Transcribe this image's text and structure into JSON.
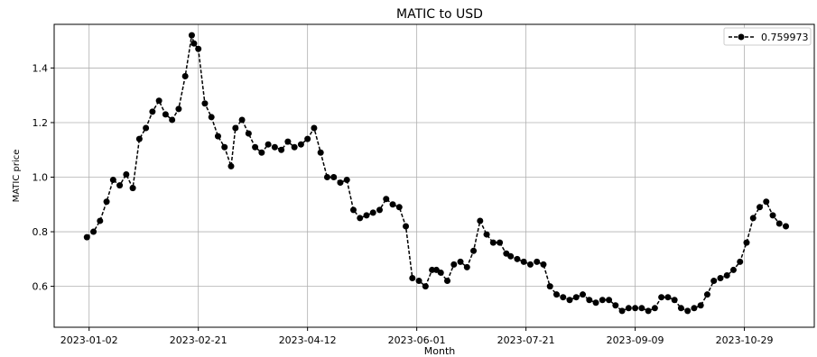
{
  "chart_data": {
    "type": "line",
    "title": "MATIC to USD",
    "xlabel": "Month",
    "ylabel": "MATIC price",
    "x_ticks": [
      "2023-01-02",
      "2023-02-21",
      "2023-04-12",
      "2023-06-01",
      "2023-07-21",
      "2023-09-09",
      "2023-10-29"
    ],
    "y_ticks": [
      "0.6",
      "0.8",
      "1.0",
      "1.2",
      "1.4"
    ],
    "xlim": [
      "2022-12-17",
      "2023-11-30"
    ],
    "ylim": [
      0.45,
      1.56
    ],
    "grid": true,
    "legend_position": "top-right",
    "series": [
      {
        "name": "0.759973",
        "color": "#000000",
        "line_style": "dashed",
        "marker": "circle",
        "x": [
          "2023-01-01",
          "2023-01-04",
          "2023-01-07",
          "2023-01-10",
          "2023-01-13",
          "2023-01-16",
          "2023-01-19",
          "2023-01-22",
          "2023-01-25",
          "2023-01-28",
          "2023-01-31",
          "2023-02-03",
          "2023-02-06",
          "2023-02-09",
          "2023-02-12",
          "2023-02-15",
          "2023-02-18",
          "2023-02-19",
          "2023-02-21",
          "2023-02-24",
          "2023-02-27",
          "2023-03-02",
          "2023-03-05",
          "2023-03-08",
          "2023-03-10",
          "2023-03-13",
          "2023-03-16",
          "2023-03-19",
          "2023-03-22",
          "2023-03-25",
          "2023-03-28",
          "2023-03-31",
          "2023-04-03",
          "2023-04-06",
          "2023-04-09",
          "2023-04-12",
          "2023-04-15",
          "2023-04-18",
          "2023-04-21",
          "2023-04-24",
          "2023-04-27",
          "2023-04-30",
          "2023-05-03",
          "2023-05-06",
          "2023-05-09",
          "2023-05-12",
          "2023-05-15",
          "2023-05-18",
          "2023-05-21",
          "2023-05-24",
          "2023-05-27",
          "2023-05-30",
          "2023-06-02",
          "2023-06-05",
          "2023-06-08",
          "2023-06-10",
          "2023-06-12",
          "2023-06-15",
          "2023-06-18",
          "2023-06-21",
          "2023-06-24",
          "2023-06-27",
          "2023-06-30",
          "2023-07-03",
          "2023-07-06",
          "2023-07-09",
          "2023-07-12",
          "2023-07-14",
          "2023-07-17",
          "2023-07-20",
          "2023-07-23",
          "2023-07-26",
          "2023-07-29",
          "2023-08-01",
          "2023-08-04",
          "2023-08-07",
          "2023-08-10",
          "2023-08-13",
          "2023-08-16",
          "2023-08-19",
          "2023-08-22",
          "2023-08-25",
          "2023-08-28",
          "2023-08-31",
          "2023-09-03",
          "2023-09-06",
          "2023-09-09",
          "2023-09-12",
          "2023-09-15",
          "2023-09-18",
          "2023-09-21",
          "2023-09-24",
          "2023-09-27",
          "2023-09-30",
          "2023-10-03",
          "2023-10-06",
          "2023-10-09",
          "2023-10-12",
          "2023-10-15",
          "2023-10-18",
          "2023-10-21",
          "2023-10-24",
          "2023-10-27",
          "2023-10-30",
          "2023-11-02",
          "2023-11-05",
          "2023-11-08",
          "2023-11-11",
          "2023-11-14",
          "2023-11-17"
        ],
        "y": [
          0.78,
          0.8,
          0.84,
          0.91,
          0.99,
          0.97,
          1.01,
          0.96,
          1.14,
          1.18,
          1.24,
          1.28,
          1.23,
          1.21,
          1.25,
          1.37,
          1.52,
          1.49,
          1.47,
          1.27,
          1.22,
          1.15,
          1.11,
          1.04,
          1.18,
          1.21,
          1.16,
          1.11,
          1.09,
          1.12,
          1.11,
          1.1,
          1.13,
          1.11,
          1.12,
          1.14,
          1.18,
          1.09,
          1.0,
          1.0,
          0.98,
          0.99,
          0.88,
          0.85,
          0.86,
          0.87,
          0.88,
          0.92,
          0.9,
          0.89,
          0.82,
          0.63,
          0.62,
          0.6,
          0.66,
          0.66,
          0.65,
          0.62,
          0.68,
          0.69,
          0.67,
          0.73,
          0.84,
          0.79,
          0.76,
          0.76,
          0.72,
          0.71,
          0.7,
          0.69,
          0.68,
          0.69,
          0.68,
          0.6,
          0.57,
          0.56,
          0.55,
          0.56,
          0.57,
          0.55,
          0.54,
          0.55,
          0.55,
          0.53,
          0.51,
          0.52,
          0.52,
          0.52,
          0.51,
          0.52,
          0.56,
          0.56,
          0.55,
          0.52,
          0.51,
          0.52,
          0.53,
          0.57,
          0.62,
          0.63,
          0.64,
          0.66,
          0.69,
          0.76,
          0.85,
          0.89,
          0.91,
          0.86,
          0.83,
          0.82
        ]
      }
    ]
  }
}
